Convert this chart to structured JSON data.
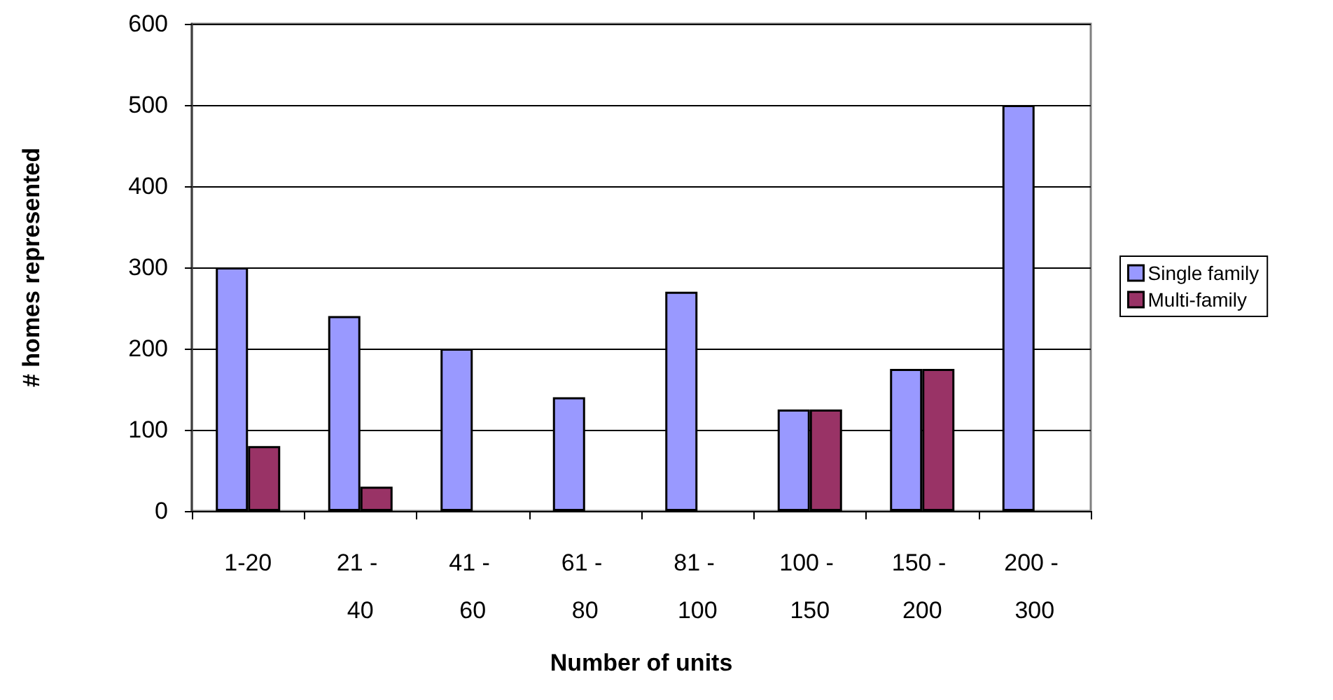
{
  "chart_data": {
    "type": "bar",
    "xlabel": "Number of units",
    "ylabel": "# homes represented",
    "categories": [
      "1-20",
      "21 - 40",
      "41 - 60",
      "61 - 80",
      "81 - 100",
      "100 - 150",
      "150 - 200",
      "200 - 300"
    ],
    "series": [
      {
        "name": "Single family",
        "color": "#9999ff",
        "values": [
          300,
          240,
          200,
          140,
          270,
          125,
          175,
          500
        ]
      },
      {
        "name": "Multi-family",
        "color": "#993366",
        "values": [
          80,
          30,
          null,
          null,
          null,
          125,
          175,
          null
        ]
      }
    ],
    "ylim": [
      0,
      600
    ],
    "yticks": [
      0,
      100,
      200,
      300,
      400,
      500,
      600
    ],
    "grid": "y",
    "legend": "right"
  }
}
